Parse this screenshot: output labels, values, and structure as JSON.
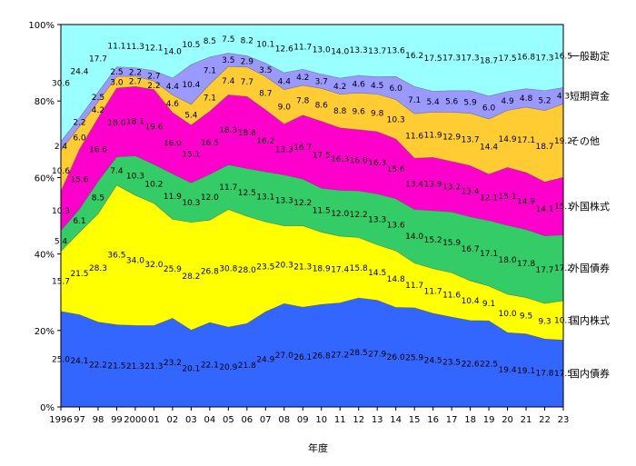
{
  "chart_data": {
    "type": "area",
    "stacked": true,
    "percent": true,
    "xlabel": "年度",
    "ylabel": "",
    "ylim": [
      0,
      100
    ],
    "y_ticks": [
      "0%",
      "20%",
      "40%",
      "60%",
      "80%",
      "100%"
    ],
    "x": [
      "1996",
      "97",
      "98",
      "99",
      "2000",
      "01",
      "02",
      "03",
      "04",
      "05",
      "06",
      "07",
      "08",
      "09",
      "10",
      "11",
      "12",
      "13",
      "14",
      "15",
      "16",
      "17",
      "18",
      "19",
      "20",
      "21",
      "22",
      "23"
    ],
    "x_tick_labels": [
      "1996",
      "97",
      "98",
      "99",
      "2000",
      "01",
      "02",
      "03",
      "04",
      "05",
      "06",
      "07",
      "08",
      "09",
      "10",
      "11",
      "12",
      "13",
      "14",
      "15",
      "16",
      "17",
      "18",
      "19",
      "20",
      "21",
      "22",
      "23"
    ],
    "grid": false,
    "legend_placement": "right, labels aligned with each band",
    "series": [
      {
        "name": "国内債券",
        "color": "#3366ff",
        "values": [
          25.0,
          24.1,
          22.2,
          21.5,
          21.3,
          21.3,
          23.2,
          20.1,
          22.1,
          20.9,
          21.8,
          24.9,
          27.0,
          26.1,
          26.8,
          27.2,
          28.5,
          27.9,
          26.0,
          25.9,
          24.5,
          23.5,
          22.6,
          22.5,
          19.4,
          19.1,
          17.8,
          17.5
        ]
      },
      {
        "name": "国内株式",
        "color": "#ffff00",
        "values": [
          15.7,
          21.5,
          28.3,
          36.5,
          34.0,
          32.0,
          25.9,
          28.2,
          26.8,
          30.8,
          28.0,
          23.5,
          20.3,
          21.3,
          18.9,
          17.4,
          15.8,
          14.5,
          14.8,
          11.7,
          11.7,
          11.6,
          10.4,
          9.1,
          10.0,
          9.5,
          9.3,
          10.3
        ]
      },
      {
        "name": "外国債券",
        "color": "#33cc66",
        "values": [
          5.4,
          6.1,
          8.5,
          7.4,
          10.3,
          10.2,
          11.9,
          10.3,
          12.0,
          11.7,
          12.5,
          13.1,
          13.3,
          12.2,
          11.5,
          12.0,
          12.2,
          13.3,
          13.6,
          14.0,
          15.2,
          15.9,
          16.7,
          17.1,
          18.0,
          17.8,
          17.7,
          17.2
        ]
      },
      {
        "name": "外国株式",
        "color": "#ff00cc",
        "values": [
          10.3,
          15.6,
          16.6,
          18.0,
          18.1,
          19.6,
          16.0,
          15.1,
          16.5,
          18.3,
          18.8,
          16.2,
          13.3,
          16.7,
          17.5,
          16.3,
          16.0,
          16.3,
          15.6,
          13.4,
          13.9,
          13.2,
          13.4,
          12.1,
          15.1,
          14.9,
          14.1,
          15.1
        ]
      },
      {
        "name": "その他",
        "color": "#ffcc33",
        "values": [
          10.6,
          6.0,
          4.2,
          3.0,
          2.7,
          2.2,
          4.6,
          5.4,
          7.1,
          7.4,
          7.7,
          8.7,
          9.0,
          7.8,
          8.6,
          8.8,
          9.6,
          9.8,
          10.3,
          11.6,
          11.9,
          12.9,
          13.7,
          14.4,
          14.9,
          17.1,
          18.7,
          19.2
        ]
      },
      {
        "name": "短期資金",
        "color": "#9999ff",
        "values": [
          2.4,
          2.2,
          2.5,
          2.5,
          2.2,
          2.7,
          4.4,
          10.4,
          7.1,
          3.5,
          2.9,
          3.5,
          4.4,
          4.2,
          3.7,
          4.2,
          4.6,
          4.5,
          6.0,
          7.1,
          5.4,
          5.6,
          5.9,
          6.0,
          4.9,
          4.8,
          5.2,
          4.3
        ]
      },
      {
        "name": "一般勘定",
        "color": "#99ffff",
        "values": [
          30.6,
          24.4,
          17.7,
          11.1,
          11.3,
          12.1,
          14.0,
          10.5,
          8.5,
          7.5,
          8.2,
          10.1,
          12.6,
          11.7,
          13.0,
          14.0,
          13.3,
          13.7,
          13.6,
          16.2,
          17.5,
          17.3,
          17.3,
          18.7,
          17.5,
          16.8,
          17.3,
          16.5
        ]
      }
    ]
  }
}
